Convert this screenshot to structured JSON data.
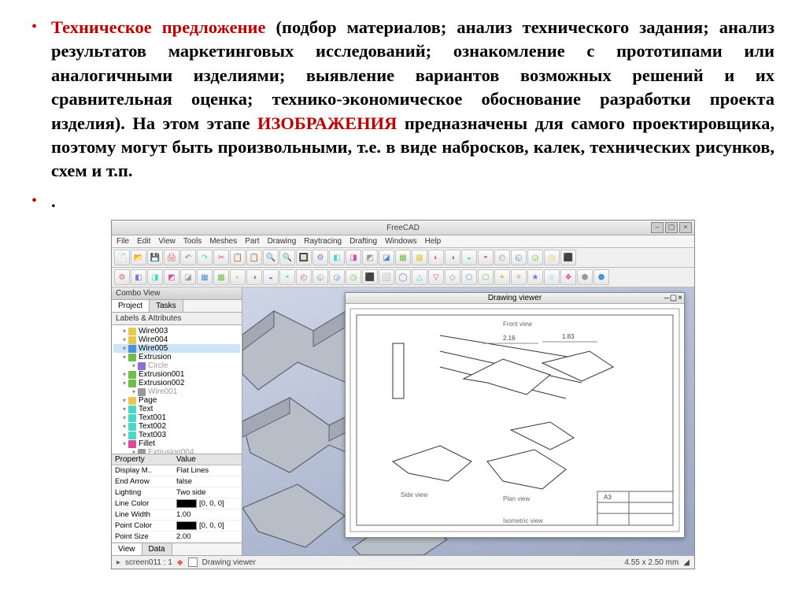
{
  "text": {
    "lead_red": "Техническое предложение",
    "body1": " (подбор материалов; анализ технического задания; анализ результатов маркетинговых исследований; ознакомление с прототипами или аналогичными изделиями; выявление вариантов возможных решений и их сравнительная оценка; технико-экономическое обоснование разработки проекта изделия). На этом этапе ",
    "mid_red": "ИЗОБРАЖЕНИЯ",
    "body2": " предназначены для самого проектировщика, поэтому могут быть произвольными, т.е. в виде набросков, калек, технических рисунков, схем и т.п.",
    "dot": "."
  },
  "app": {
    "title": "FreeCAD",
    "menus": [
      "File",
      "Edit",
      "View",
      "Tools",
      "Meshes",
      "Part",
      "Drawing",
      "Raytracing",
      "Drafting",
      "Windows",
      "Help"
    ],
    "toolbar_icons": [
      "📄",
      "📂",
      "💾",
      "🖨",
      "↶",
      "↷",
      "✂",
      "📋",
      "📋",
      "🔍",
      "🔍",
      "🔲",
      "⚙",
      "◧",
      "◨",
      "◩",
      "◪",
      "▦",
      "▩",
      "◐",
      "◑",
      "◒",
      "◓",
      "◴",
      "◵",
      "◶",
      "◷",
      "⬛",
      "⬜",
      "◯",
      "△",
      "▽",
      "◇",
      "⬠",
      "⬡",
      "✦",
      "✧",
      "★",
      "☆",
      "❖",
      "⬢",
      "⬣",
      "⬤",
      "⬥",
      "⬦",
      "⬧",
      "⬨",
      "⬩"
    ],
    "toolbar_colors": [
      "#4a90d9",
      "#6fbf4a",
      "#e6c84a",
      "#e06464",
      "#8a6fd9",
      "#4ad9c8",
      "#d94a9a",
      "#999999"
    ],
    "combo_view": "Combo View",
    "tabs": {
      "project": "Project",
      "tasks": "Tasks"
    },
    "labels_header": "Labels & Attributes",
    "tree": [
      {
        "label": "Wire003",
        "color": "#e6c84a",
        "indent": 1
      },
      {
        "label": "Wire004",
        "color": "#e6c84a",
        "indent": 1
      },
      {
        "label": "Wire005",
        "color": "#4a90d9",
        "indent": 1,
        "sel": true
      },
      {
        "label": "Extrusion",
        "color": "#6fbf4a",
        "indent": 1
      },
      {
        "label": "Circle",
        "color": "#8a6fd9",
        "indent": 2
      },
      {
        "label": "Extrusion001",
        "color": "#6fbf4a",
        "indent": 1
      },
      {
        "label": "Extrusion002",
        "color": "#6fbf4a",
        "indent": 1
      },
      {
        "label": "Wire001",
        "color": "#999999",
        "indent": 2
      },
      {
        "label": "Page",
        "color": "#e6c84a",
        "indent": 1
      },
      {
        "label": "Text",
        "color": "#4ad9c8",
        "indent": 1
      },
      {
        "label": "Text001",
        "color": "#4ad9c8",
        "indent": 1
      },
      {
        "label": "Text002",
        "color": "#4ad9c8",
        "indent": 1
      },
      {
        "label": "Text003",
        "color": "#4ad9c8",
        "indent": 1
      },
      {
        "label": "Fillet",
        "color": "#d94a9a",
        "indent": 1
      },
      {
        "label": "Extrusion004",
        "color": "#999999",
        "indent": 2
      }
    ],
    "prop_header": {
      "c1": "Property",
      "c2": "Value"
    },
    "props": [
      {
        "k": "Display M..",
        "v": "Flat Lines"
      },
      {
        "k": "End Arrow",
        "v": "false"
      },
      {
        "k": "Lighting",
        "v": "Two side"
      },
      {
        "k": "Line Color",
        "v": "[0, 0, 0]",
        "swatch": "#000000"
      },
      {
        "k": "Line Width",
        "v": "1.00"
      },
      {
        "k": "Point Color",
        "v": "[0, 0, 0]",
        "swatch": "#000000"
      },
      {
        "k": "Point Size",
        "v": "2.00"
      }
    ],
    "bottom_tabs": {
      "view": "View",
      "data": "Data"
    },
    "drawing_viewer": "Drawing viewer",
    "dims": [
      "2.16",
      "1.83",
      "Front view",
      "Side view",
      "Plan view",
      "Isometric view",
      "A3"
    ],
    "status": {
      "tab1": "screen011 : 1",
      "tab2": "Drawing viewer",
      "right": "4.55 x 2.50 mm"
    }
  },
  "style": {
    "red": "#c00000",
    "slide_bg": "#ffffff",
    "canvas_grad_top": "#cfd6e6",
    "canvas_grad_bot": "#9aa6c4",
    "part_fill": "#b8bec8",
    "part_stroke": "#5a6070"
  }
}
